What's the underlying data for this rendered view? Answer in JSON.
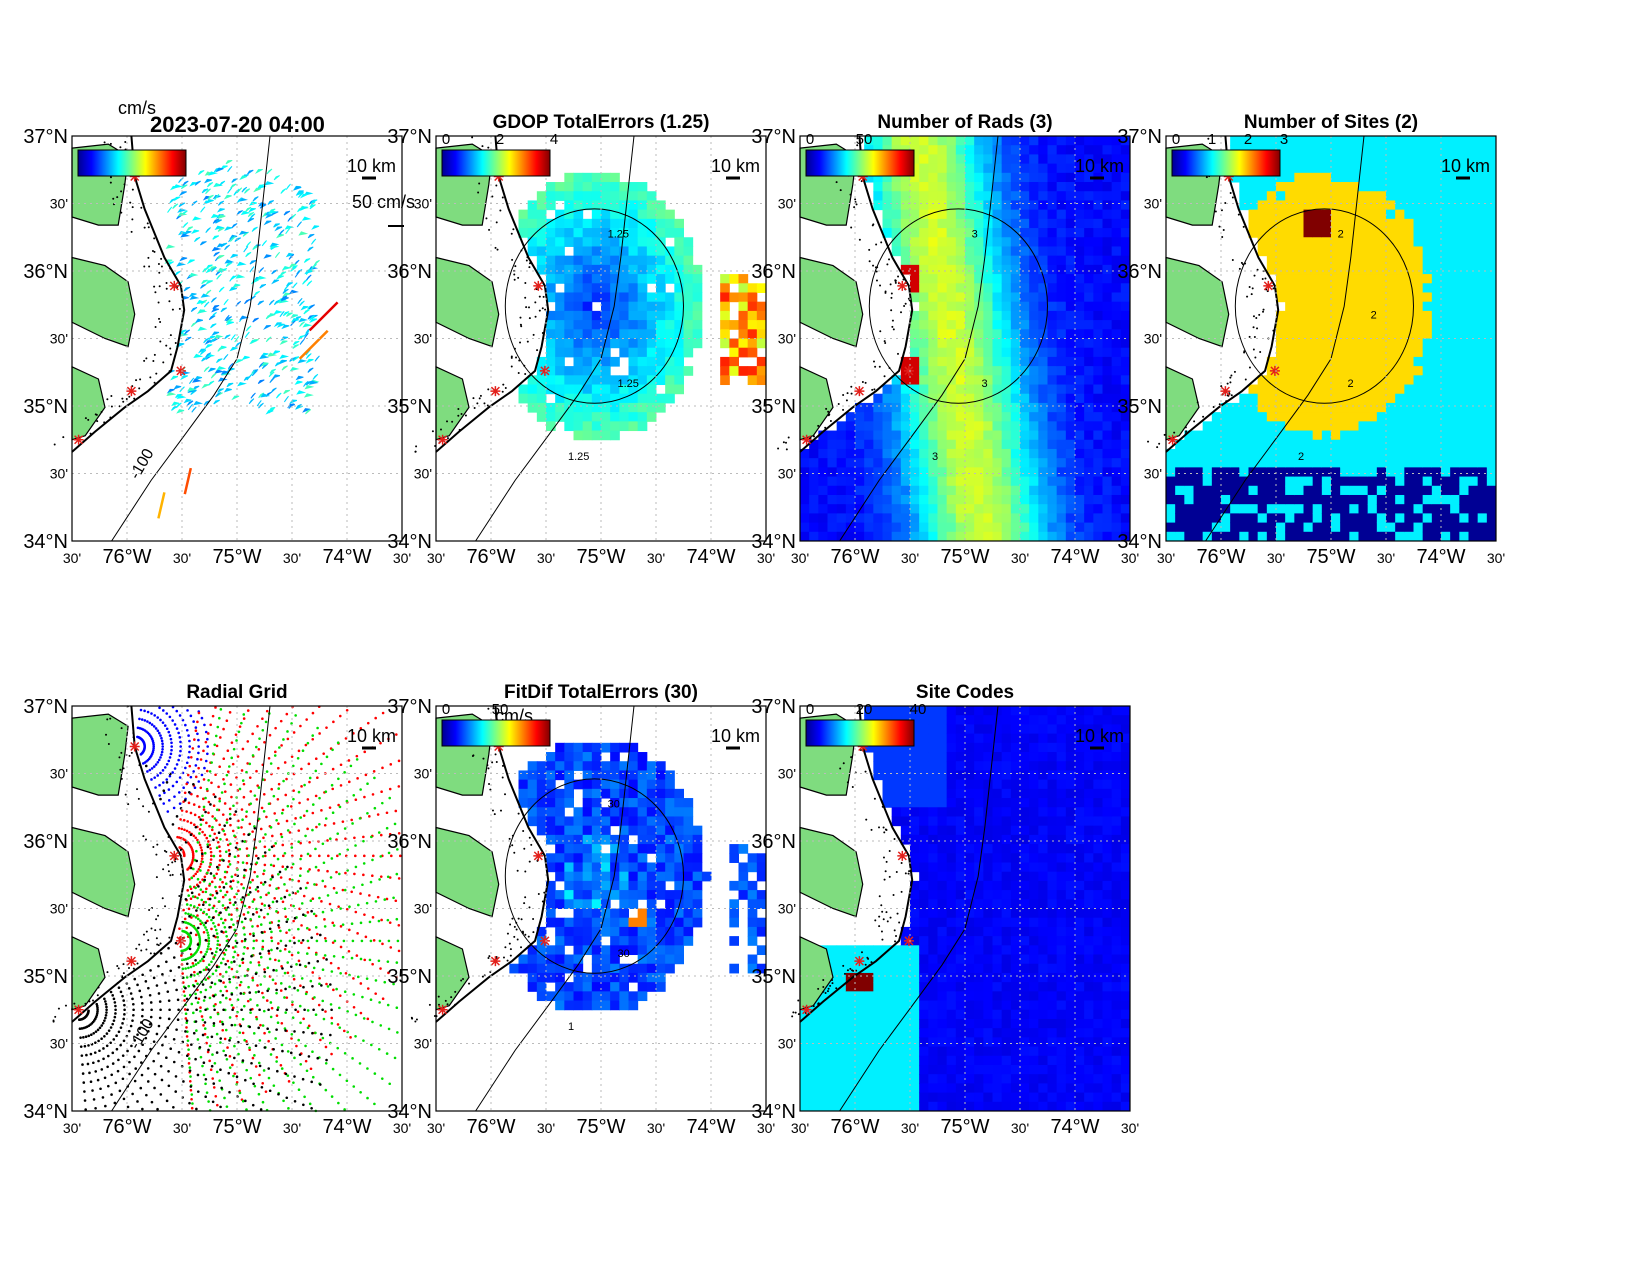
{
  "figure": {
    "timestamp": "2023-07-20 04:00",
    "unit_label": "cm/s",
    "vector_scale_label": "50 cm/s",
    "distance_scale_label": "10 km"
  },
  "axes": {
    "lat_labels": [
      "37°N",
      "30'",
      "36°N",
      "30'",
      "35°N",
      "30'",
      "34°N"
    ],
    "lon_labels": [
      "30'",
      "76°W",
      "30'",
      "75°W",
      "30'",
      "74°W",
      "30'"
    ],
    "depth_contour_label": "-100"
  },
  "colors": {
    "land": "#7fdc7f",
    "site_marker": "#e3201b",
    "grid_site_colors": [
      "#0000ff",
      "#ff0000",
      "#00dd00",
      "#000000"
    ]
  },
  "panels": [
    {
      "id": "totals",
      "title": "",
      "colorbar": {
        "ticks": []
      },
      "kind": "vectors"
    },
    {
      "id": "gdop",
      "title": "GDOP TotalErrors (1.25)",
      "colorbar": {
        "ticks": [
          "0",
          "2",
          "4"
        ]
      },
      "kind": "field",
      "contour_labels": [
        "1.25",
        "1.25",
        "1.25"
      ]
    },
    {
      "id": "nrads",
      "title": "Number of Rads (3)",
      "colorbar": {
        "ticks": [
          "0",
          "50"
        ]
      },
      "kind": "field",
      "contour_labels": [
        "3",
        "3",
        "3"
      ]
    },
    {
      "id": "nsites",
      "title": "Number of Sites (2)",
      "colorbar": {
        "ticks": [
          "0",
          "1",
          "2",
          "3"
        ]
      },
      "kind": "field",
      "contour_labels": [
        "2",
        "2",
        "2",
        "2"
      ]
    },
    {
      "id": "radgrid",
      "title": "Radial Grid",
      "colorbar": {
        "ticks": []
      },
      "kind": "radgrid"
    },
    {
      "id": "fitdif",
      "title": "FitDif TotalErrors (30)",
      "unit_label": "cm/s",
      "colorbar": {
        "ticks": [
          "0",
          "50"
        ]
      },
      "kind": "field",
      "contour_labels": [
        "30",
        "30",
        "1"
      ]
    },
    {
      "id": "sitecodes",
      "title": "Site Codes",
      "colorbar": {
        "ticks": [
          "0",
          "20",
          "40"
        ]
      },
      "kind": "field"
    }
  ]
}
